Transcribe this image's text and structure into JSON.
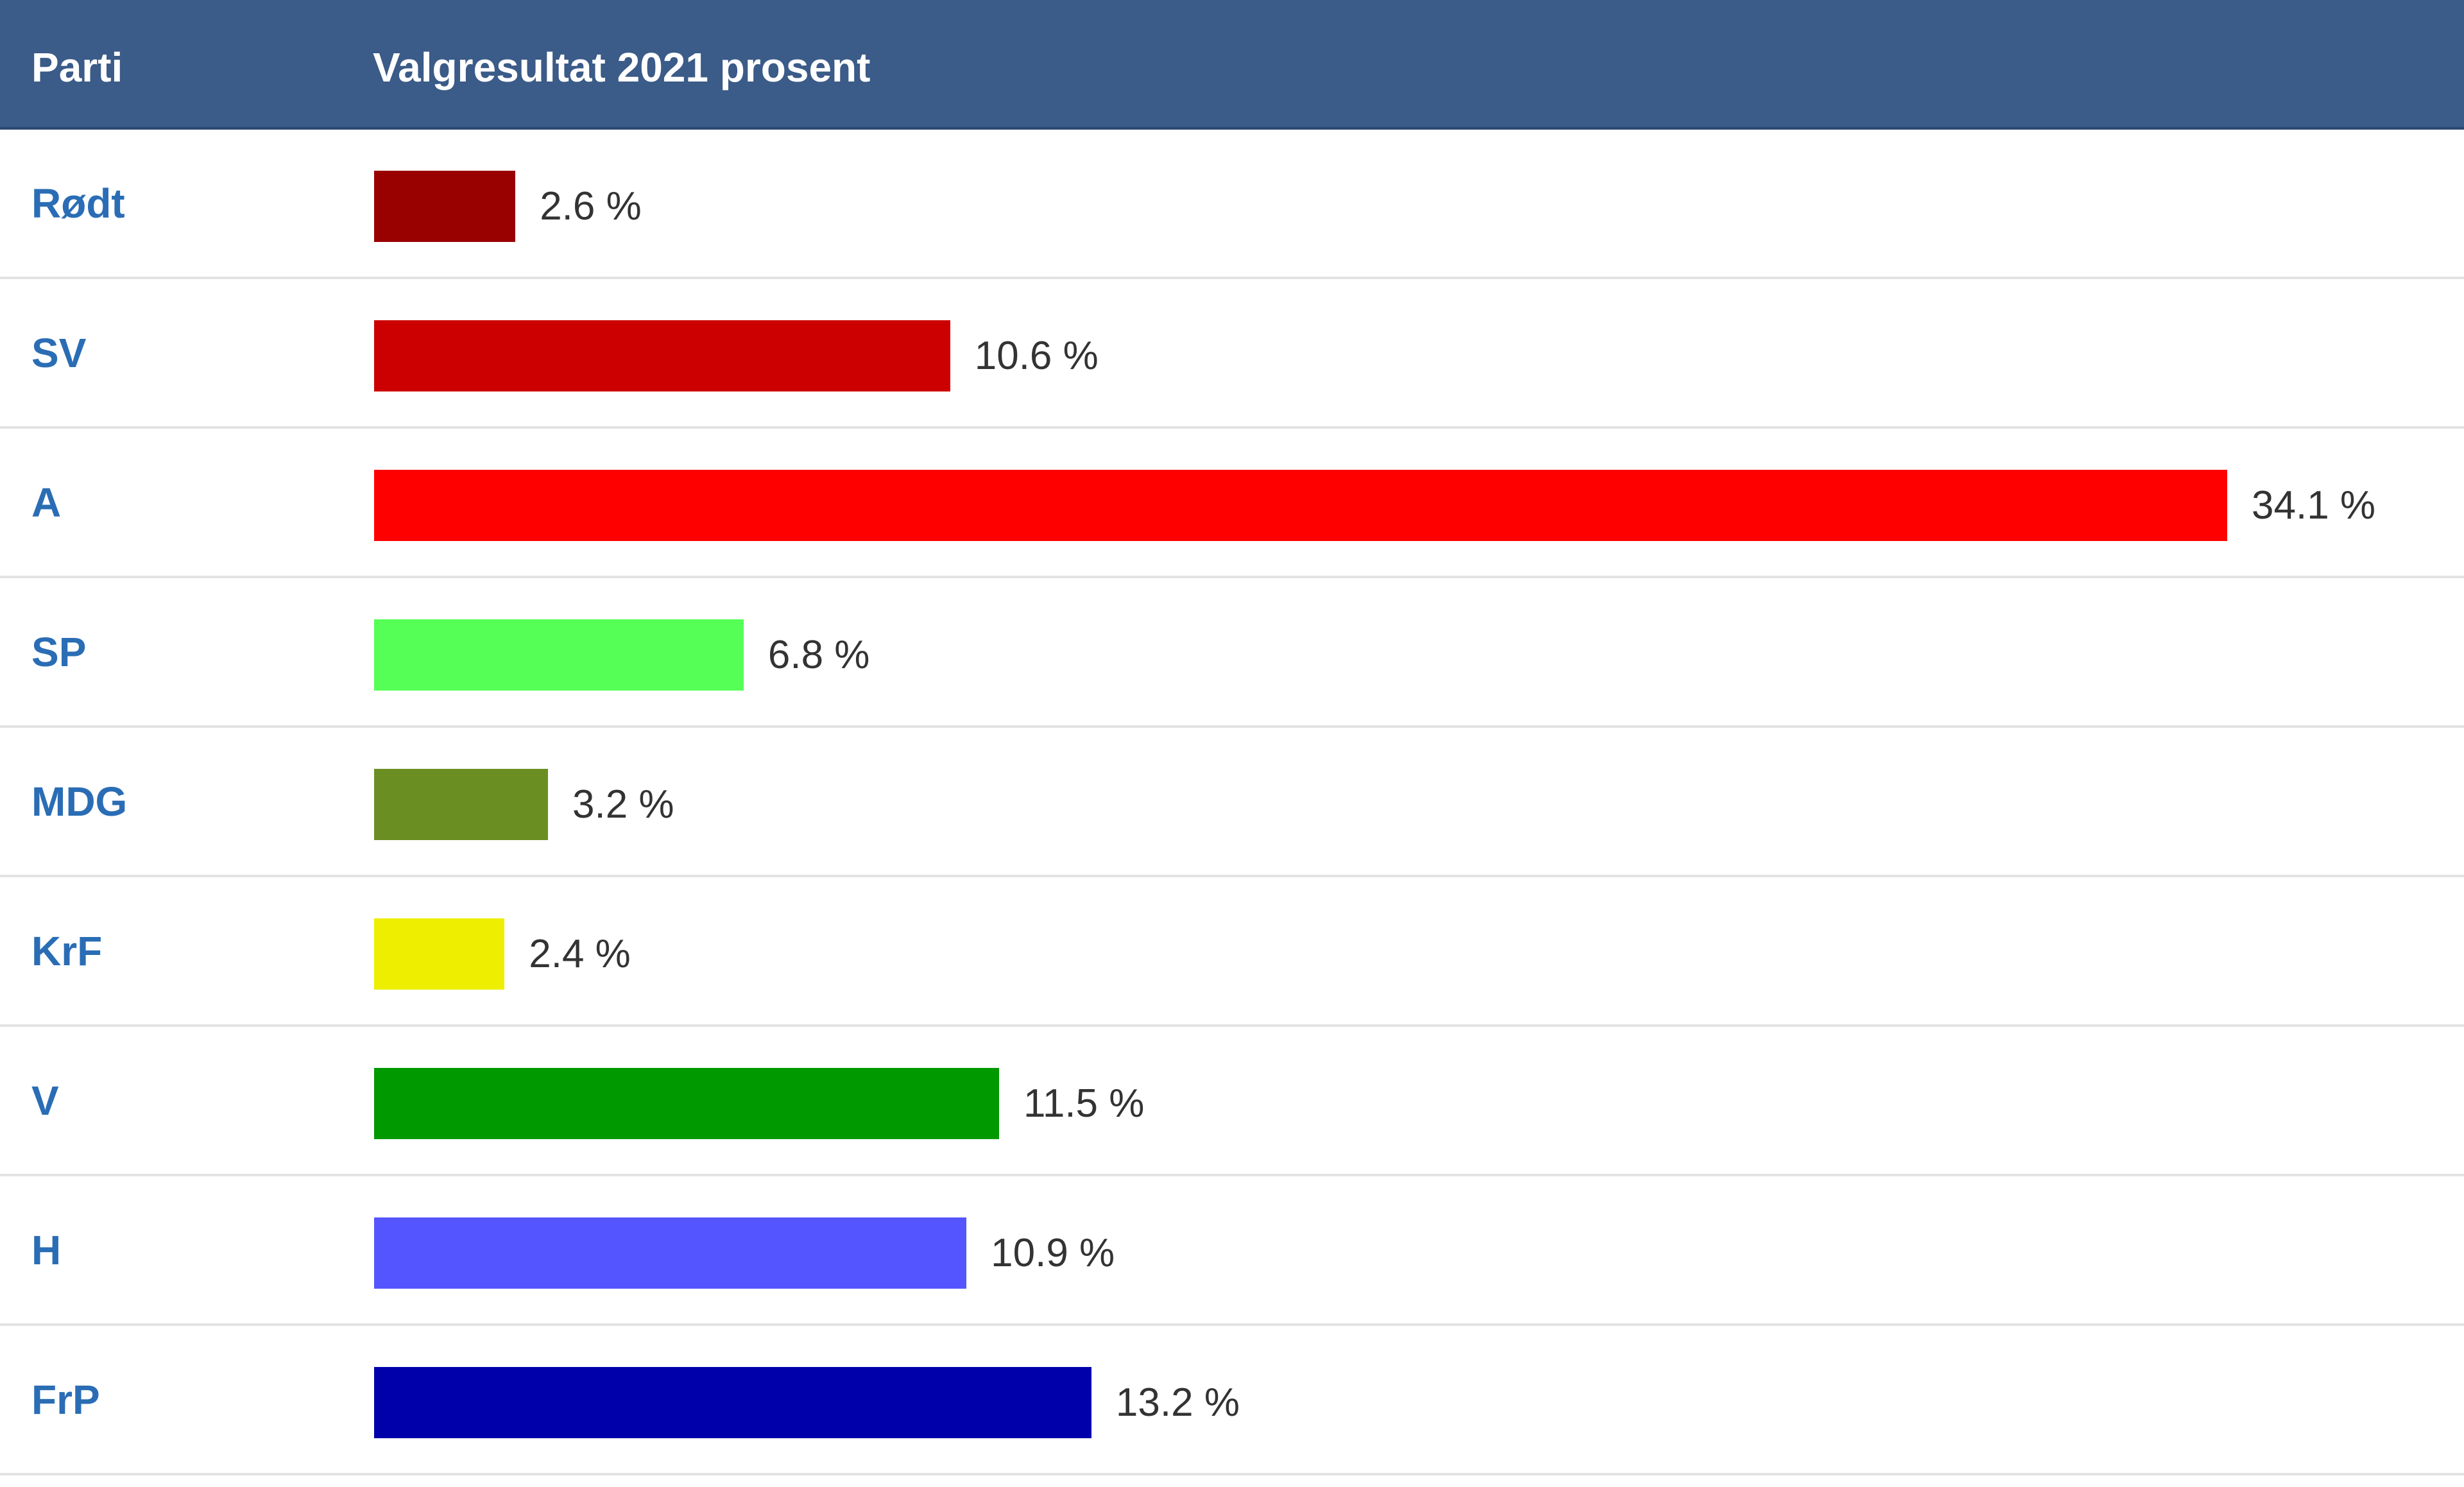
{
  "header": {
    "party_label": "Parti",
    "result_label": "Valgresultat 2021 prosent"
  },
  "chart_data": {
    "type": "bar",
    "orientation": "horizontal",
    "categories": [
      "Rødt",
      "SV",
      "A",
      "SP",
      "MDG",
      "KrF",
      "V",
      "H",
      "FrP"
    ],
    "values": [
      2.6,
      10.6,
      34.1,
      6.8,
      3.2,
      2.4,
      11.5,
      10.9,
      13.2
    ],
    "value_labels": [
      "2.6 %",
      "10.6 %",
      "34.1 %",
      "6.8 %",
      "3.2 %",
      "2.4 %",
      "11.5 %",
      "10.9 %",
      "13.2 %"
    ],
    "colors": [
      "#990000",
      "#cc0000",
      "#ff0000",
      "#55ff55",
      "#6b8e23",
      "#eeee00",
      "#009900",
      "#5555ff",
      "#0000aa"
    ],
    "unit": "%",
    "xlim": [
      0,
      34.1
    ],
    "grid": false,
    "legend": "none"
  },
  "theme": {
    "header_bg": "#3b5b88",
    "header_text": "#ffffff",
    "party_text": "#2a6db5",
    "value_text": "#333333",
    "row_divider": "#e3e3e3"
  }
}
